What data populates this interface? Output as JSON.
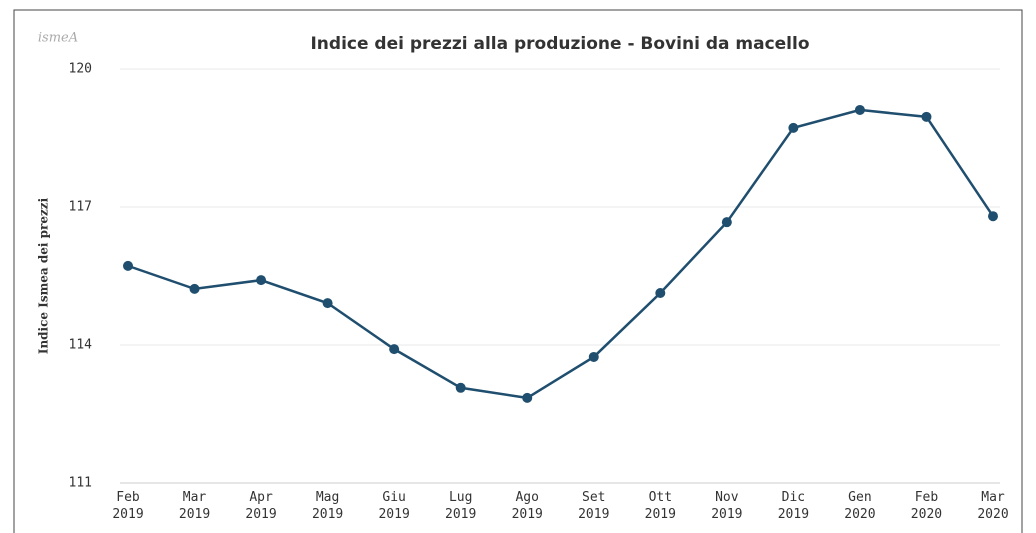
{
  "logo": "ismeA",
  "chart_data": {
    "type": "line",
    "title": "Indice dei prezzi alla produzione - Bovini da macello",
    "y_label": "Indice Ismea dei prezzi",
    "categories": [
      "Feb 2019",
      "Mar 2019",
      "Apr 2019",
      "Mag 2019",
      "Giu 2019",
      "Lug 2019",
      "Ago 2019",
      "Set 2019",
      "Ott 2019",
      "Nov 2019",
      "Dic 2019",
      "Gen 2020",
      "Feb 2020",
      "Mar 2020"
    ],
    "series": [
      {
        "name": "Indice",
        "color": "#1f4e6e",
        "values": [
          115.72,
          115.22,
          115.41,
          114.91,
          113.91,
          113.07,
          112.85,
          113.74,
          115.13,
          116.67,
          118.72,
          119.11,
          118.96,
          116.8
        ]
      }
    ],
    "ylim": [
      111,
      120
    ],
    "yticks": [
      111,
      114,
      117,
      120
    ],
    "grid": true
  }
}
